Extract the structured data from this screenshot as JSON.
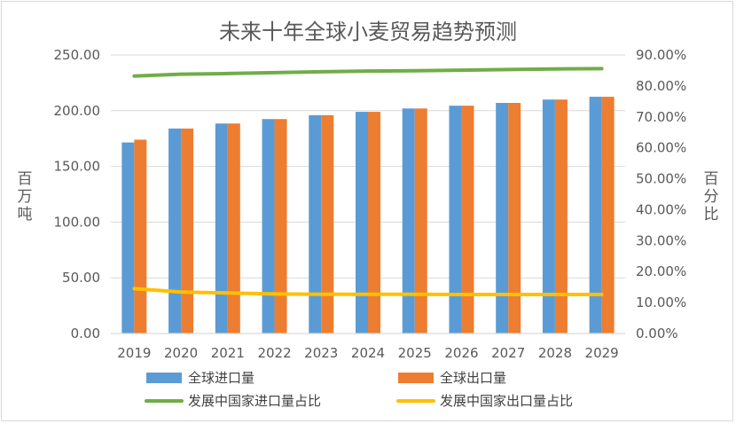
{
  "chart_data": {
    "type": "bar",
    "title": "未来十年全球小麦贸易趋势预测",
    "categories": [
      "2019",
      "2020",
      "2021",
      "2022",
      "2023",
      "2024",
      "2025",
      "2026",
      "2027",
      "2028",
      "2029"
    ],
    "series": [
      {
        "name": "全球进口量",
        "type": "bar",
        "axis": "left",
        "color": "#5b9bd5",
        "values": [
          171.5,
          184,
          188.5,
          192.5,
          196,
          199,
          202,
          204.5,
          207,
          210,
          212.5
        ]
      },
      {
        "name": "全球出口量",
        "type": "bar",
        "axis": "left",
        "color": "#ed7d31",
        "values": [
          174,
          184,
          188.5,
          192.5,
          196,
          199,
          202,
          204.5,
          207,
          210,
          212.5
        ]
      },
      {
        "name": "发展中国家进口量占比",
        "type": "line",
        "axis": "right",
        "color": "#70ad47",
        "values": [
          83.2,
          83.8,
          84.0,
          84.3,
          84.6,
          84.8,
          84.9,
          85.1,
          85.3,
          85.5,
          85.6
        ]
      },
      {
        "name": "发展中国家出口量占比",
        "type": "line",
        "axis": "right",
        "color": "#ffc000",
        "values": [
          14.5,
          13.4,
          13.1,
          12.8,
          12.7,
          12.7,
          12.7,
          12.6,
          12.6,
          12.6,
          12.6
        ]
      }
    ],
    "ylabel_left": "百万吨",
    "ylabel_right": "百分比",
    "ylim_left": [
      0,
      250
    ],
    "ylim_right": [
      0,
      90
    ],
    "yticks_left": [
      "0.00",
      "50.00",
      "100.00",
      "150.00",
      "200.00",
      "250.00"
    ],
    "yticks_right": [
      "0.00%",
      "10.00%",
      "20.00%",
      "30.00%",
      "40.00%",
      "50.00%",
      "60.00%",
      "70.00%",
      "80.00%",
      "90.00%"
    ],
    "grid": true,
    "legend_position": "bottom"
  }
}
